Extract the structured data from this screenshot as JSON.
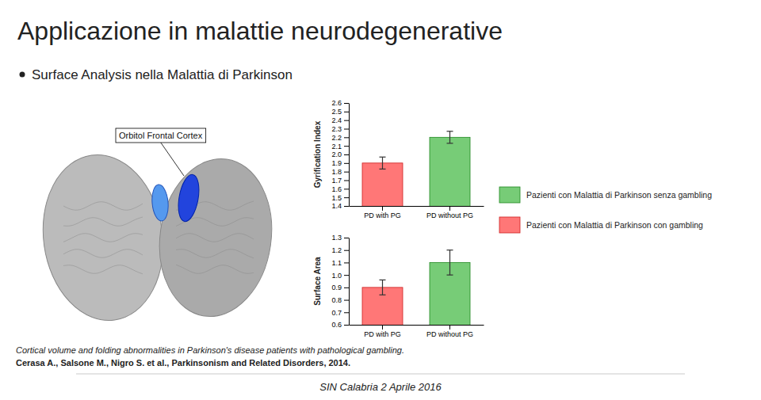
{
  "title": "Applicazione in malattie neurodegenerative",
  "subtitle": "Surface Analysis nella Malattia di Parkinson",
  "annotations": [
    "Orbitol Frontal Cortex",
    "Cortical volume and folding abnormalities in Parkinson's disease patients with pathological gambling.",
    "Cerasa A., Salsone M., Nigro S. et al., Parkinsonism and Related Disorders, 2014.",
    "SIN Calabria 2 Aprile 2016"
  ],
  "legend": "right",
  "legend_entries": [
    {
      "name": "Pazienti con Malattia di Parkinson senza gambling",
      "color": "#77CC77",
      "edge_color": "#228822"
    },
    {
      "name": "Pazienti con Malattia di Parkinson con gambling",
      "color": "#FF7777",
      "edge_color": "#CC2222"
    }
  ],
  "chart_data": [
    {
      "type": "bar",
      "ylabel": "Gyrification Index",
      "categories": [
        "PD with PG",
        "PD without PG"
      ],
      "values": [
        1.9,
        2.2
      ],
      "errors": [
        0.07,
        0.07
      ],
      "colors": [
        "#FF7777",
        "#77CC77"
      ],
      "edge_colors": [
        "#CC2222",
        "#228822"
      ],
      "ylim": [
        1.4,
        2.6
      ],
      "yticks": [
        1.4,
        1.5,
        1.6,
        1.7,
        1.8,
        1.9,
        {
          "value": 2.0,
          "label": "2.0"
        },
        2.1,
        2.2,
        2.3,
        2.4,
        2.5,
        2.6
      ],
      "grid": false
    },
    {
      "type": "bar",
      "ylabel": "Surface Area",
      "categories": [
        "PD with PG",
        "PD without PG"
      ],
      "values": [
        0.9,
        1.1
      ],
      "errors": [
        0.06,
        0.1
      ],
      "colors": [
        "#FF7777",
        "#77CC77"
      ],
      "edge_colors": [
        "#CC2222",
        "#228822"
      ],
      "ylim": [
        0.6,
        1.3
      ],
      "yticks": [
        0.6,
        0.7,
        0.8,
        0.9,
        {
          "value": 1.0,
          "label": "1.0"
        },
        1.1,
        1.2,
        1.3
      ],
      "grid": false
    }
  ]
}
